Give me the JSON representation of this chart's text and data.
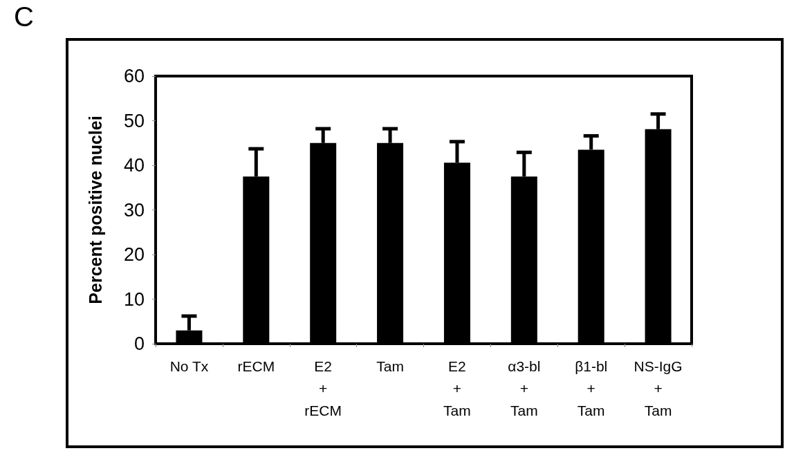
{
  "chart_data": {
    "type": "bar",
    "title": "C",
    "ylabel": "Percent positive nuclei",
    "categories": [
      "No Tx",
      "rECM",
      "E2\n+\nrECM",
      "Tam",
      "E2\n+\nTam",
      "α3-bl\n+\nTam",
      "β1-bl\n+\nTam",
      "NS-IgG\n+\nTam"
    ],
    "values": [
      3,
      37.5,
      45,
      45,
      40.6,
      37.5,
      43.5,
      48.1
    ],
    "errors": [
      [
        3,
        6.2
      ],
      [
        37.5,
        43.7
      ],
      [
        45,
        48.2
      ],
      [
        45,
        48.2
      ],
      [
        40.6,
        45.3
      ],
      [
        37.5,
        42.9
      ],
      [
        43.5,
        46.6
      ],
      [
        48.1,
        51.5
      ]
    ],
    "color": "#000000",
    "ylim": [
      0,
      60
    ],
    "yticks": [
      0,
      10,
      20,
      30,
      40,
      50,
      60
    ],
    "grid": false
  }
}
